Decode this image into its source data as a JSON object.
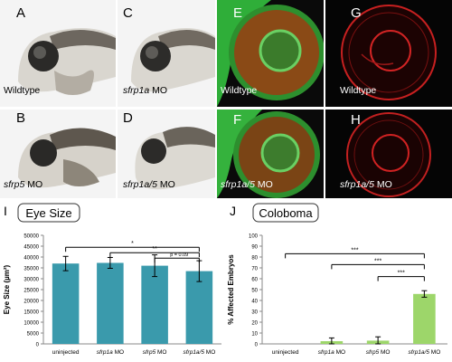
{
  "panels": {
    "A": {
      "letter": "A",
      "label": "Wildtype"
    },
    "B": {
      "letter": "B",
      "label_italic": "sfrp5",
      "label_rest": " MO"
    },
    "C": {
      "letter": "C",
      "label_italic": "sfrp1a",
      "label_rest": " MO"
    },
    "D": {
      "letter": "D",
      "label_italic": "sfrp1a/5",
      "label_rest": " MO"
    },
    "E": {
      "letter": "E",
      "label": "Wildtype"
    },
    "F": {
      "letter": "F",
      "label_italic": "sfrp1a/5",
      "label_rest": " MO"
    },
    "G": {
      "letter": "G",
      "label": "Wildtype"
    },
    "H": {
      "letter": "H",
      "label_italic": "sfrp1a/5",
      "label_rest": " MO"
    }
  },
  "chart_data": [
    {
      "id": "I",
      "type": "bar",
      "panel_letter": "I",
      "title": "Eye Size",
      "ylabel": "Eye Size (µm²)",
      "ylim": [
        0,
        50000
      ],
      "ytick_step": 5000,
      "color": "#3a9aac",
      "categories": [
        "uninjected",
        "sfrp1a MO",
        "sfrp5 MO",
        "sfrp1a/5 MO"
      ],
      "category_parts": [
        {
          "italic": "",
          "rest": "uninjected"
        },
        {
          "italic": "sfrp1a",
          "rest": " MO"
        },
        {
          "italic": "sfrp5",
          "rest": " MO"
        },
        {
          "italic": "sfrp1a/5",
          "rest": " MO"
        }
      ],
      "values": [
        37000,
        37300,
        36000,
        33500
      ],
      "errors": [
        3300,
        2500,
        5000,
        4800
      ],
      "significance": [
        {
          "from": 0,
          "to": 3,
          "y": 44500,
          "label": "*"
        },
        {
          "from": 1,
          "to": 3,
          "y": 42000,
          "label": "**"
        },
        {
          "from": 2,
          "to": 3,
          "y": 39500,
          "label": "p = 0.09"
        }
      ],
      "grid": false
    },
    {
      "id": "J",
      "type": "bar",
      "panel_letter": "J",
      "title": "Coloboma",
      "ylabel": "% Affected Embryos",
      "ylim": [
        0,
        100
      ],
      "ytick_step": 10,
      "color": "#9dd66a",
      "categories": [
        "uninjected",
        "sfrp1a MO",
        "sfrp5 MO",
        "sfrp1a/5 MO"
      ],
      "category_parts": [
        {
          "italic": "",
          "rest": "uninjected"
        },
        {
          "italic": "sfrp1a",
          "rest": " MO"
        },
        {
          "italic": "sfrp5",
          "rest": " MO"
        },
        {
          "italic": "sfrp1a/5",
          "rest": " MO"
        }
      ],
      "values": [
        0,
        2.5,
        3,
        46
      ],
      "errors": [
        0,
        3,
        3.5,
        3
      ],
      "significance": [
        {
          "from": 0,
          "to": 3,
          "y": 83,
          "label": "***"
        },
        {
          "from": 1,
          "to": 3,
          "y": 73,
          "label": "***"
        },
        {
          "from": 2,
          "to": 3,
          "y": 62,
          "label": "***"
        }
      ],
      "grid": false
    }
  ]
}
